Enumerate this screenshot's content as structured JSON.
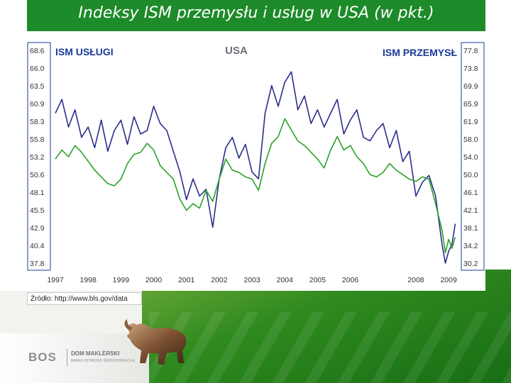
{
  "slide": {
    "title": "Indeksy ISM przemysłu i usług w USA (w pkt.)",
    "source": "Źródło: http://www.bls.gov/data",
    "logo": {
      "brand": "BOS",
      "name": "DOM MAKLERSKI",
      "subtitle": "BANKU OCHRONY ŚRODOWISKA S.A."
    }
  },
  "chart_data": {
    "type": "line",
    "title": "USA",
    "x_ticks": [
      "1997",
      "1998",
      "1999",
      "2000",
      "2001",
      "2002",
      "2003",
      "2004",
      "2005",
      "2006",
      "2008",
      "2009"
    ],
    "x_range": [
      1997.0,
      2009.3
    ],
    "left_axis": {
      "label": "ISM USŁUGI",
      "ticks": [
        "68.6",
        "66.0",
        "63.5",
        "60.9",
        "58.3",
        "55.8",
        "53.2",
        "50.6",
        "48.1",
        "45.5",
        "42.9",
        "40.4",
        "37.8"
      ],
      "range": [
        37.8,
        68.6
      ]
    },
    "right_axis": {
      "label": "ISM PRZEMYSŁ",
      "ticks": [
        "77.8",
        "73.8",
        "69.9",
        "65.9",
        "61.9",
        "58.0",
        "54.0",
        "50.0",
        "46.1",
        "42.1",
        "38.1",
        "34.2",
        "30.2"
      ],
      "range": [
        30.2,
        77.8
      ]
    },
    "grid": false,
    "colors": {
      "services": "#2b2d8c",
      "manufacturing": "#2aa12a",
      "labels": "#1b3a9a"
    },
    "series": [
      {
        "name": "ISM USŁUGI",
        "axis": "left",
        "points": [
          [
            1997.0,
            59.5
          ],
          [
            1997.2,
            61.5
          ],
          [
            1997.4,
            57.5
          ],
          [
            1997.6,
            60.0
          ],
          [
            1997.8,
            56.0
          ],
          [
            1998.0,
            57.5
          ],
          [
            1998.2,
            54.5
          ],
          [
            1998.4,
            58.5
          ],
          [
            1998.6,
            54.0
          ],
          [
            1998.8,
            57.0
          ],
          [
            1999.0,
            58.5
          ],
          [
            1999.2,
            55.0
          ],
          [
            1999.4,
            59.0
          ],
          [
            1999.6,
            56.5
          ],
          [
            1999.8,
            57.0
          ],
          [
            2000.0,
            60.5
          ],
          [
            2000.2,
            58.0
          ],
          [
            2000.4,
            57.0
          ],
          [
            2000.6,
            54.0
          ],
          [
            2000.8,
            51.0
          ],
          [
            2001.0,
            47.0
          ],
          [
            2001.2,
            50.0
          ],
          [
            2001.4,
            47.5
          ],
          [
            2001.6,
            48.5
          ],
          [
            2001.8,
            43.0
          ],
          [
            2002.0,
            50.0
          ],
          [
            2002.2,
            54.5
          ],
          [
            2002.4,
            56.0
          ],
          [
            2002.6,
            53.0
          ],
          [
            2002.8,
            55.0
          ],
          [
            2003.0,
            51.0
          ],
          [
            2003.2,
            50.0
          ],
          [
            2003.4,
            59.5
          ],
          [
            2003.6,
            63.5
          ],
          [
            2003.8,
            60.5
          ],
          [
            2004.0,
            64.0
          ],
          [
            2004.2,
            65.5
          ],
          [
            2004.4,
            60.0
          ],
          [
            2004.6,
            62.0
          ],
          [
            2004.8,
            58.0
          ],
          [
            2005.0,
            60.0
          ],
          [
            2005.2,
            57.5
          ],
          [
            2005.4,
            59.5
          ],
          [
            2005.6,
            61.5
          ],
          [
            2005.8,
            56.5
          ],
          [
            2006.0,
            58.5
          ],
          [
            2006.2,
            60.0
          ],
          [
            2006.4,
            56.0
          ],
          [
            2006.6,
            55.5
          ],
          [
            2006.8,
            57.0
          ],
          [
            2007.0,
            58.0
          ],
          [
            2007.2,
            54.5
          ],
          [
            2007.4,
            57.0
          ],
          [
            2007.6,
            52.5
          ],
          [
            2007.8,
            54.0
          ],
          [
            2008.0,
            47.5
          ],
          [
            2008.2,
            49.5
          ],
          [
            2008.4,
            50.5
          ],
          [
            2008.6,
            47.5
          ],
          [
            2008.8,
            40.5
          ],
          [
            2008.9,
            37.8
          ],
          [
            2009.0,
            39.5
          ],
          [
            2009.1,
            40.5
          ],
          [
            2009.2,
            43.5
          ]
        ]
      },
      {
        "name": "ISM PRZEMYSŁ",
        "axis": "right",
        "points": [
          [
            1997.0,
            53.5
          ],
          [
            1997.2,
            55.5
          ],
          [
            1997.4,
            54.0
          ],
          [
            1997.6,
            56.5
          ],
          [
            1997.8,
            55.0
          ],
          [
            1998.0,
            53.0
          ],
          [
            1998.2,
            51.0
          ],
          [
            1998.4,
            49.5
          ],
          [
            1998.6,
            48.0
          ],
          [
            1998.8,
            47.5
          ],
          [
            1999.0,
            49.0
          ],
          [
            1999.2,
            52.5
          ],
          [
            1999.4,
            54.5
          ],
          [
            1999.6,
            55.0
          ],
          [
            1999.8,
            57.0
          ],
          [
            2000.0,
            55.5
          ],
          [
            2000.2,
            52.0
          ],
          [
            2000.4,
            50.5
          ],
          [
            2000.6,
            49.0
          ],
          [
            2000.8,
            44.5
          ],
          [
            2001.0,
            42.0
          ],
          [
            2001.2,
            43.5
          ],
          [
            2001.4,
            42.5
          ],
          [
            2001.6,
            46.5
          ],
          [
            2001.8,
            44.0
          ],
          [
            2002.0,
            49.0
          ],
          [
            2002.2,
            53.5
          ],
          [
            2002.4,
            51.0
          ],
          [
            2002.6,
            50.5
          ],
          [
            2002.8,
            49.5
          ],
          [
            2003.0,
            49.0
          ],
          [
            2003.2,
            46.5
          ],
          [
            2003.4,
            52.5
          ],
          [
            2003.6,
            57.0
          ],
          [
            2003.8,
            58.5
          ],
          [
            2004.0,
            62.5
          ],
          [
            2004.2,
            60.0
          ],
          [
            2004.4,
            57.5
          ],
          [
            2004.6,
            56.5
          ],
          [
            2004.8,
            55.0
          ],
          [
            2005.0,
            53.5
          ],
          [
            2005.2,
            51.5
          ],
          [
            2005.4,
            55.5
          ],
          [
            2005.6,
            58.5
          ],
          [
            2005.8,
            55.5
          ],
          [
            2006.0,
            56.5
          ],
          [
            2006.2,
            54.0
          ],
          [
            2006.4,
            52.5
          ],
          [
            2006.6,
            50.0
          ],
          [
            2006.8,
            49.5
          ],
          [
            2007.0,
            50.5
          ],
          [
            2007.2,
            52.5
          ],
          [
            2007.4,
            51.0
          ],
          [
            2007.6,
            50.0
          ],
          [
            2007.8,
            49.0
          ],
          [
            2008.0,
            48.5
          ],
          [
            2008.2,
            49.5
          ],
          [
            2008.4,
            49.0
          ],
          [
            2008.6,
            43.5
          ],
          [
            2008.8,
            37.5
          ],
          [
            2008.9,
            32.5
          ],
          [
            2009.0,
            35.5
          ],
          [
            2009.1,
            33.5
          ],
          [
            2009.2,
            36.0
          ]
        ]
      }
    ]
  }
}
